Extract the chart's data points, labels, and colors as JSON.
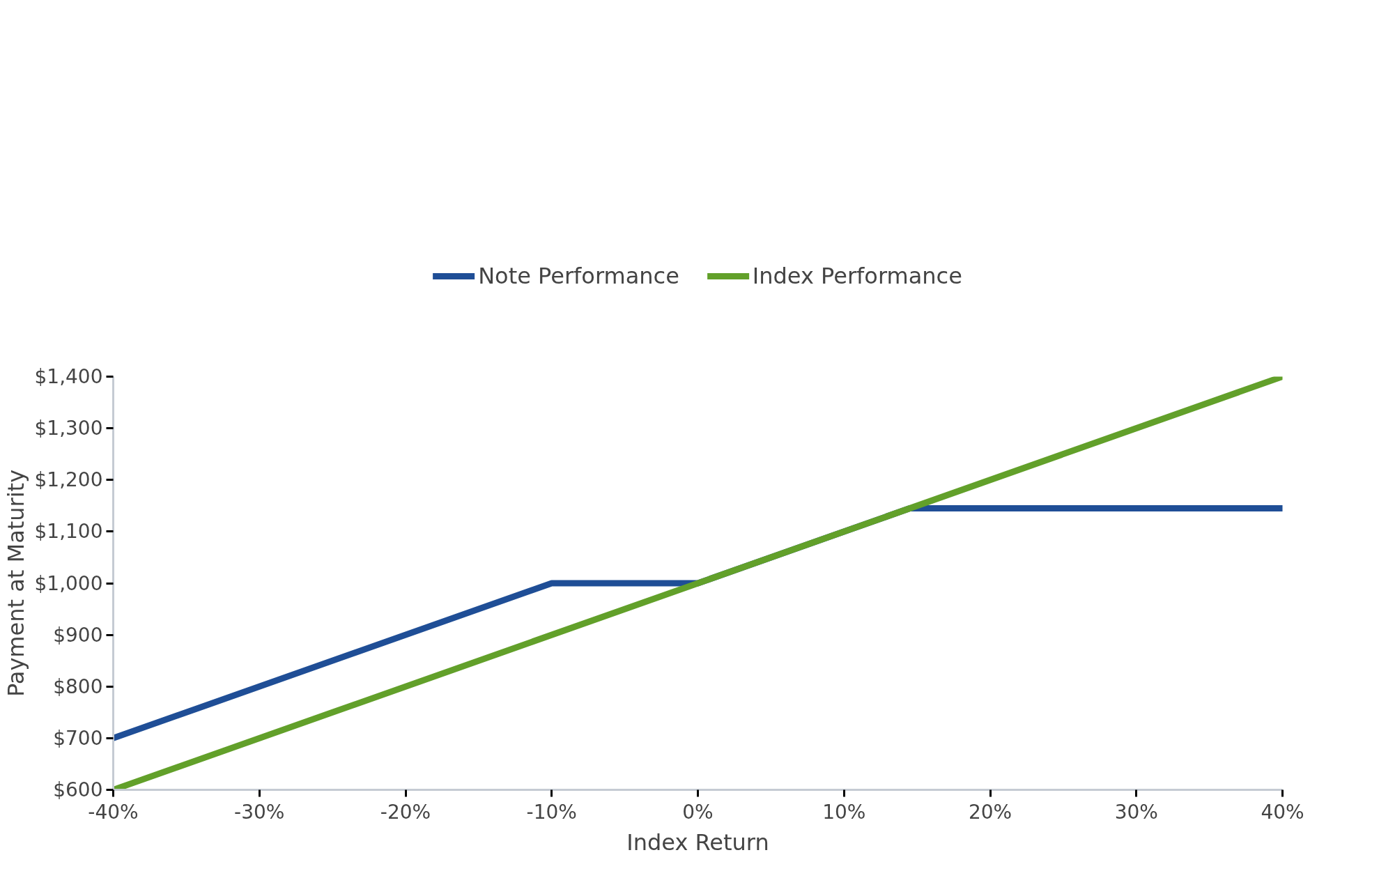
{
  "chart_data": {
    "type": "line",
    "xlabel": "Index Return",
    "ylabel": "Payment at Maturity",
    "xlim": [
      -40,
      40
    ],
    "ylim": [
      600,
      1400
    ],
    "xticks": [
      {
        "value": -40,
        "label": "-40%"
      },
      {
        "value": -30,
        "label": "-30%"
      },
      {
        "value": -20,
        "label": "-20%"
      },
      {
        "value": -10,
        "label": "-10%"
      },
      {
        "value": 0,
        "label": "0%"
      },
      {
        "value": 10,
        "label": "10%"
      },
      {
        "value": 20,
        "label": "20%"
      },
      {
        "value": 30,
        "label": "30%"
      },
      {
        "value": 40,
        "label": "40%"
      }
    ],
    "yticks": [
      {
        "value": 600,
        "label": "$600"
      },
      {
        "value": 700,
        "label": "$700"
      },
      {
        "value": 800,
        "label": "$800"
      },
      {
        "value": 900,
        "label": "$900"
      },
      {
        "value": 1000,
        "label": "$1,000"
      },
      {
        "value": 1100,
        "label": "$1,100"
      },
      {
        "value": 1200,
        "label": "$1,200"
      },
      {
        "value": 1300,
        "label": "$1,300"
      },
      {
        "value": 1400,
        "label": "$1,400"
      }
    ],
    "grid": false,
    "legend": "top",
    "line_style": "solid",
    "series": [
      {
        "name": "Note Performance",
        "color": "#1f4e96",
        "x": [
          -40,
          -10,
          0,
          14.5,
          40
        ],
        "values": [
          700,
          1000,
          1000,
          1145,
          1145
        ]
      },
      {
        "name": "Index Performance",
        "color": "#62a02a",
        "x": [
          -40,
          40
        ],
        "values": [
          600,
          1400
        ]
      }
    ]
  }
}
